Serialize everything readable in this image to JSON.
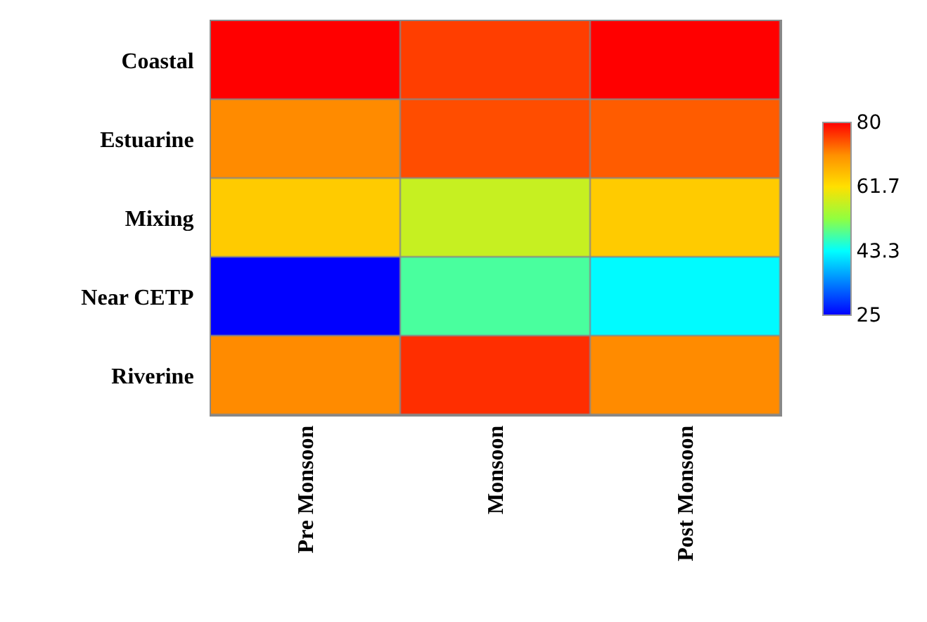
{
  "chart_data": {
    "type": "heatmap",
    "categories": [
      "Pre Monsoon",
      "Monsoon",
      "Post Monsoon"
    ],
    "y_categories": [
      "Coastal",
      "Estuarine",
      "Mixing",
      "Near CETP",
      "Riverine"
    ],
    "cells": [
      [
        80,
        76,
        80
      ],
      [
        71,
        75,
        74
      ],
      [
        64,
        57,
        64
      ],
      [
        25,
        48,
        43
      ],
      [
        71,
        77,
        71
      ]
    ],
    "clim": [
      25,
      80
    ],
    "cticks": [
      25,
      43.3,
      61.7,
      80
    ]
  }
}
